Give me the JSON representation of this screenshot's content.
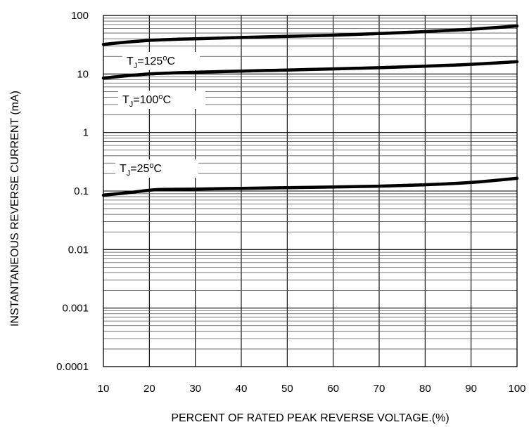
{
  "chart_data": {
    "type": "line",
    "xlabel": "PERCENT OF RATED PEAK REVERSE VOLTAGE.(%)",
    "ylabel": "INSTANTANEOUS REVERSE CURRENT (mA)",
    "xlim": [
      10,
      100
    ],
    "ylim": [
      0.0001,
      100
    ],
    "yscale": "log",
    "grid": true,
    "x_ticks": [
      "10",
      "20",
      "30",
      "40",
      "50",
      "60",
      "70",
      "80",
      "90",
      "100"
    ],
    "y_ticks": [
      "0.0001",
      "0.001",
      "0.01",
      "0.1",
      "1",
      "10",
      "100"
    ],
    "series": [
      {
        "name_main": "T",
        "name_sub": "J",
        "name_rest": "=125",
        "name_sup": "o",
        "name_unit": "C",
        "x": [
          10,
          15,
          20,
          25,
          30,
          40,
          50,
          60,
          70,
          80,
          90,
          100
        ],
        "y": [
          32,
          35,
          37.5,
          39,
          40,
          42,
          44,
          46,
          49,
          53,
          58,
          66
        ]
      },
      {
        "name_main": "T",
        "name_sub": "J",
        "name_rest": "=100",
        "name_sup": "o",
        "name_unit": "C",
        "x": [
          10,
          15,
          20,
          25,
          30,
          40,
          50,
          60,
          70,
          80,
          90,
          100
        ],
        "y": [
          8.5,
          9.3,
          10,
          10.4,
          10.7,
          11.2,
          11.7,
          12.2,
          12.8,
          13.6,
          14.6,
          16.2
        ]
      },
      {
        "name_main": "T",
        "name_sub": "J",
        "name_rest": "=25",
        "name_sup": "o",
        "name_unit": "C",
        "x": [
          10,
          15,
          20,
          22,
          25,
          30,
          40,
          50,
          60,
          70,
          80,
          90,
          100
        ],
        "y": [
          0.085,
          0.093,
          0.103,
          0.106,
          0.107,
          0.108,
          0.111,
          0.114,
          0.117,
          0.121,
          0.128,
          0.14,
          0.165
        ]
      }
    ]
  }
}
